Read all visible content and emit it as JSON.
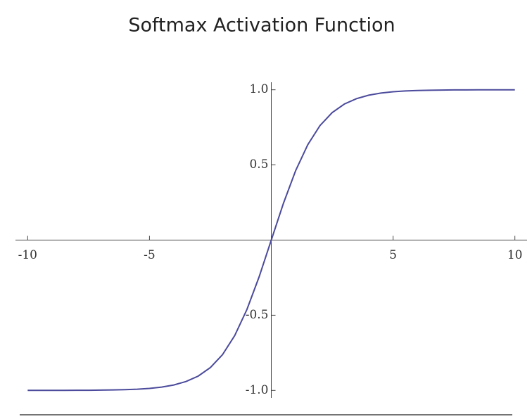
{
  "chart_data": {
    "type": "line",
    "title": "Softmax Activation Function",
    "x": [
      -10,
      -9.5,
      -9,
      -8.5,
      -8,
      -7.5,
      -7,
      -6.5,
      -6,
      -5.5,
      -5,
      -4.5,
      -4,
      -3.5,
      -3,
      -2.5,
      -2,
      -1.5,
      -1,
      -0.5,
      0,
      0.5,
      1,
      1.5,
      2,
      2.5,
      3,
      3.5,
      4,
      4.5,
      5,
      5.5,
      6,
      6.5,
      7,
      7.5,
      8,
      8.5,
      9,
      9.5,
      10
    ],
    "series": [
      {
        "color": "#4b4a9c",
        "values": [
          -1.0,
          -1.0,
          -1.0,
          -1.0,
          -0.999,
          -0.999,
          -0.998,
          -0.997,
          -0.995,
          -0.992,
          -0.987,
          -0.978,
          -0.964,
          -0.941,
          -0.905,
          -0.848,
          -0.762,
          -0.635,
          -0.462,
          -0.245,
          0,
          0.245,
          0.462,
          0.635,
          0.762,
          0.848,
          0.905,
          0.941,
          0.964,
          0.978,
          0.987,
          0.992,
          0.995,
          0.997,
          0.998,
          0.999,
          0.999,
          1.0,
          1.0,
          1.0,
          1.0
        ]
      }
    ],
    "xlim": [
      -10.5,
      10.5
    ],
    "xticks": [
      -10,
      -5,
      5,
      10
    ],
    "ylim": [
      -1.05,
      1.05
    ],
    "yticks": [
      {
        "value": 1,
        "label": "1.0"
      },
      0.5,
      -0.5,
      {
        "value": -1,
        "label": "-1.0"
      }
    ],
    "grid": false
  }
}
